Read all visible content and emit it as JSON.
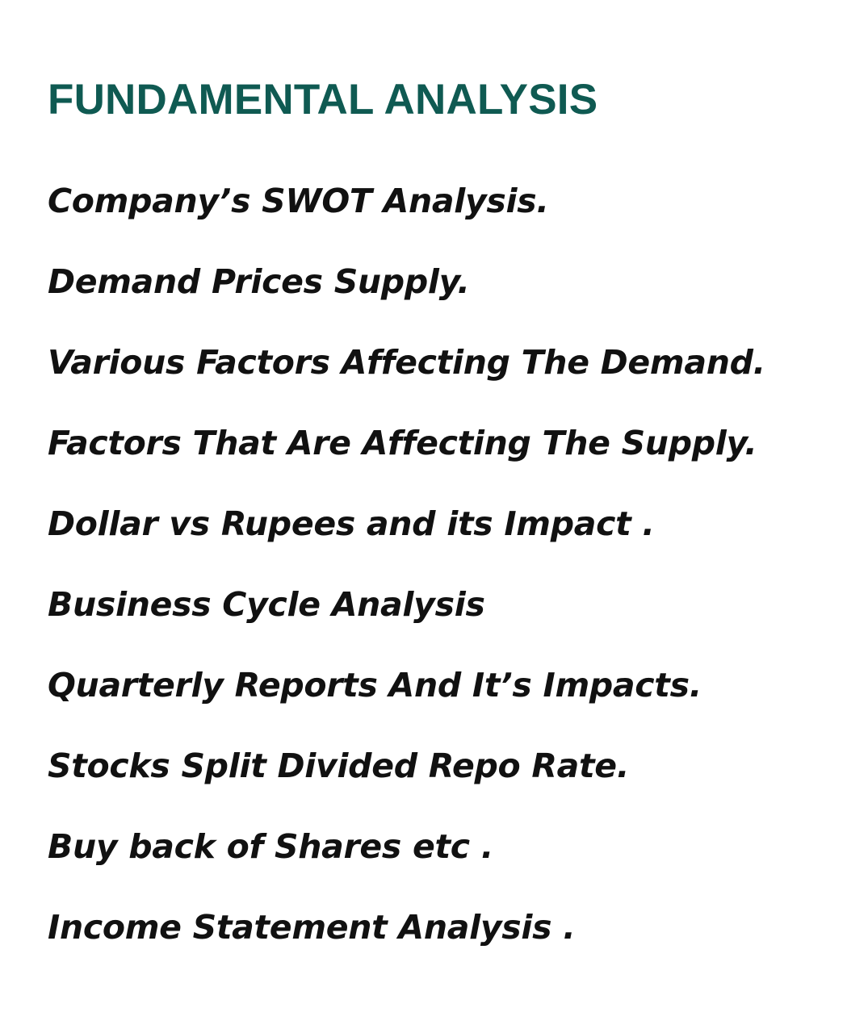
{
  "heading": "FUNDAMENTAL ANALYSIS",
  "topics": [
    "Company’s SWOT Analysis.",
    "Demand Prices Supply.",
    "Various Factors Affecting The Demand.",
    "Factors That Are Affecting The Supply.",
    "Dollar vs Rupees and its Impact .",
    "Business Cycle Analysis",
    "Quarterly Reports And It’s Impacts.",
    "Stocks Split Divided Repo Rate.",
    "Buy back of Shares etc .",
    "Income Statement Analysis ."
  ],
  "colors": {
    "heading": "#0f5a52",
    "text": "#111111",
    "background": "#ffffff"
  }
}
